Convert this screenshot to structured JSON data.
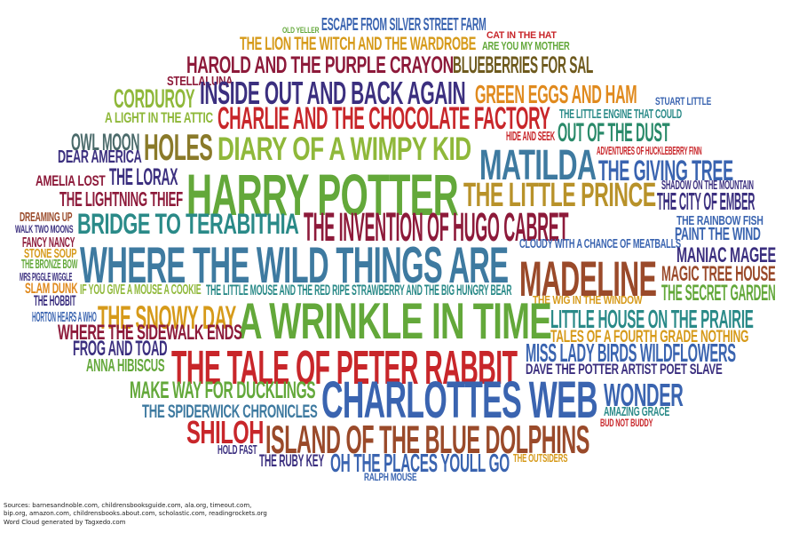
{
  "colors": {
    "red": "#c8262a",
    "maroon": "#8d1a3a",
    "purple": "#3b2f7f",
    "blue": "#3a64b0",
    "steel": "#3e7aa0",
    "teal": "#2a8a88",
    "green": "#63a83a",
    "lime": "#8fb83a",
    "olive": "#8a7a2a",
    "gold": "#d69a1a",
    "orange": "#e08a1e",
    "brown": "#9a4a2a"
  },
  "words": [
    {
      "text": "OLD YELLER",
      "color": "#63a83a"
    },
    {
      "text": "ESCAPE FROM SILVER STREET FARM",
      "color": "#3a64b0"
    },
    {
      "text": "CAT IN THE HAT",
      "color": "#c8262a"
    },
    {
      "text": "THE LION THE WITCH AND THE WARDROBE",
      "color": "#d69a1a"
    },
    {
      "text": "ARE YOU MY MOTHER",
      "color": "#63a83a"
    },
    {
      "text": "HAROLD AND THE PURPLE CRAYON",
      "color": "#8d1a3a"
    },
    {
      "text": "BLUEBERRIES FOR SAL",
      "color": "#6e5a1e"
    },
    {
      "text": "STELLALUNA",
      "color": "#8d1a3a"
    },
    {
      "text": "CORDUROY",
      "color": "#8fb83a"
    },
    {
      "text": "INSIDE OUT AND BACK AGAIN",
      "color": "#3b2f7f"
    },
    {
      "text": "GREEN EGGS AND HAM",
      "color": "#e08a1e"
    },
    {
      "text": "STUART LITTLE",
      "color": "#3a64b0"
    },
    {
      "text": "A LIGHT IN THE ATTIC",
      "color": "#8fb83a"
    },
    {
      "text": "CHARLIE AND THE CHOCOLATE FACTORY",
      "color": "#c8262a"
    },
    {
      "text": "THE LITTLE ENGINE THAT COULD",
      "color": "#2a8a88"
    },
    {
      "text": "OWL MOON",
      "color": "#4a6a6a"
    },
    {
      "text": "HIDE AND SEEK",
      "color": "#c8262a"
    },
    {
      "text": "OUT OF THE DUST",
      "color": "#2a8a6a"
    },
    {
      "text": "HOLES",
      "color": "#8a7a2a"
    },
    {
      "text": "DIARY OF A WIMPY KID",
      "color": "#8fb83a"
    },
    {
      "text": "MATILDA",
      "color": "#3e7aa0"
    },
    {
      "text": "ADVENTURES OF HUCKLEBERRY FINN",
      "color": "#c8262a"
    },
    {
      "text": "DEAR AMERICA",
      "color": "#3b2f7f"
    },
    {
      "text": "THE GIVING TREE",
      "color": "#3a64b0"
    },
    {
      "text": "AMELIA LOST",
      "color": "#8d1a3a"
    },
    {
      "text": "THE LORAX",
      "color": "#3b2f7f"
    },
    {
      "text": "HARRY POTTER",
      "color": "#63a83a"
    },
    {
      "text": "THE LITTLE PRINCE",
      "color": "#b8922a"
    },
    {
      "text": "SHADOW ON THE MOUNTAIN",
      "color": "#3b2f7f"
    },
    {
      "text": "THE LIGHTNING THIEF",
      "color": "#8d1a3a"
    },
    {
      "text": "THE CITY OF EMBER",
      "color": "#3b2f7f"
    },
    {
      "text": "DREAMING UP",
      "color": "#9a4a2a"
    },
    {
      "text": "BRIDGE TO TERABITHIA",
      "color": "#2a8a88"
    },
    {
      "text": "THE INVENTION OF HUGO CABRET",
      "color": "#8d1a3a"
    },
    {
      "text": "THE RAINBOW FISH",
      "color": "#3a64b0"
    },
    {
      "text": "WALK TWO MOONS",
      "color": "#3b2f7f"
    },
    {
      "text": "PAINT THE WIND",
      "color": "#3a64b0"
    },
    {
      "text": "FANCY NANCY",
      "color": "#8d1a3a"
    },
    {
      "text": "STONE SOUP",
      "color": "#d69a1a"
    },
    {
      "text": "WHERE THE WILD THINGS ARE",
      "color": "#3e7aa0"
    },
    {
      "text": "CLOUDY WITH A CHANCE OF MEATBALLS",
      "color": "#3a64b0"
    },
    {
      "text": "MANIAC MAGEE",
      "color": "#3b2f7f"
    },
    {
      "text": "THE BRONZE BOW",
      "color": "#63a83a"
    },
    {
      "text": "MADELINE",
      "color": "#9a4a2a"
    },
    {
      "text": "MAGIC TREE HOUSE",
      "color": "#9a4a2a"
    },
    {
      "text": "MRS PIGGLE WIGGLE",
      "color": "#3b2f7f"
    },
    {
      "text": "SLAM DUNK",
      "color": "#e08a1e"
    },
    {
      "text": "IF YOU GIVE A MOUSE A COOKIE",
      "color": "#8fb83a"
    },
    {
      "text": "THE LITTLE MOUSE AND THE RED RIPE STRAWBERRY AND THE BIG HUNGRY BEAR",
      "color": "#2a8a88"
    },
    {
      "text": "THE SECRET GARDEN",
      "color": "#63a83a"
    },
    {
      "text": "THE HOBBIT",
      "color": "#3b2f7f"
    },
    {
      "text": "THE WIG IN THE WINDOW",
      "color": "#d69a1a"
    },
    {
      "text": "THE SNOWY DAY",
      "color": "#d69a1a"
    },
    {
      "text": "HORTON HEARS A WHO",
      "color": "#3a64b0"
    },
    {
      "text": "A WRINKLE IN TIME",
      "color": "#63a83a"
    },
    {
      "text": "LITTLE HOUSE ON THE PRAIRIE",
      "color": "#2a8a88"
    },
    {
      "text": "WHERE THE SIDEWALK ENDS",
      "color": "#8d1a3a"
    },
    {
      "text": "TALES OF A FOURTH GRADE NOTHING",
      "color": "#d69a1a"
    },
    {
      "text": "FROG AND TOAD",
      "color": "#3b2f7f"
    },
    {
      "text": "MISS LADY BIRDS WILDFLOWERS",
      "color": "#3a64b0"
    },
    {
      "text": "ANNA HIBISCUS",
      "color": "#63a83a"
    },
    {
      "text": "THE TALE OF PETER RABBIT",
      "color": "#c8262a"
    },
    {
      "text": "DAVE THE POTTER ARTIST POET SLAVE",
      "color": "#3b2f7f"
    },
    {
      "text": "MAKE WAY FOR DUCKLINGS",
      "color": "#63a83a"
    },
    {
      "text": "CHARLOTTES WEB",
      "color": "#3a64b0"
    },
    {
      "text": "WONDER",
      "color": "#3a64b0"
    },
    {
      "text": "THE SPIDERWICK CHRONICLES",
      "color": "#3e7aa0"
    },
    {
      "text": "AMAZING GRACE",
      "color": "#2a8a88"
    },
    {
      "text": "BUD NOT BUDDY",
      "color": "#c8262a"
    },
    {
      "text": "SHILOH",
      "color": "#c8262a"
    },
    {
      "text": "ISLAND OF THE BLUE DOLPHINS",
      "color": "#9a4a2a"
    },
    {
      "text": "HOLD FAST",
      "color": "#3b2f7f"
    },
    {
      "text": "THE OUTSIDERS",
      "color": "#d69a1a"
    },
    {
      "text": "THE RUBY KEY",
      "color": "#3b2f7f"
    },
    {
      "text": "OH THE PLACES YOULL GO",
      "color": "#3a64b0"
    },
    {
      "text": "RALPH MOUSE",
      "color": "#3a64b0"
    }
  ],
  "sources": [
    "Sources: barnesandnoble.com, childrensbooksguide.com, ala.org, timeout.com,",
    "bip.org, amazon.com, childrensbooks.about.com, scholastic.com, readingrockets.org",
    "Word Cloud generated by Tagxedo.com"
  ]
}
